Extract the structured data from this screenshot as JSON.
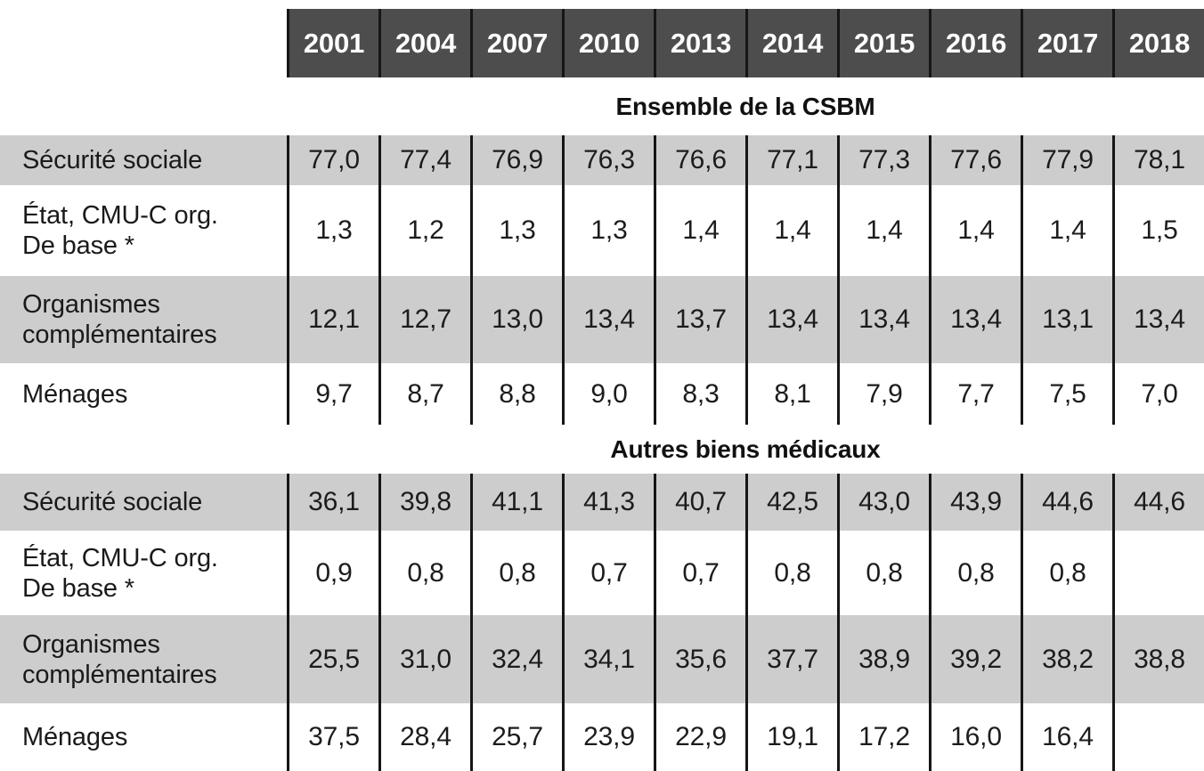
{
  "table": {
    "years": [
      "2001",
      "2004",
      "2007",
      "2010",
      "2013",
      "2014",
      "2015",
      "2016",
      "2017",
      "2018"
    ],
    "sections": [
      {
        "title": "Ensemble de la CSBM",
        "rows": [
          {
            "label_lines": [
              "Sécurité sociale"
            ],
            "values": [
              "77,0",
              "77,4",
              "76,9",
              "76,3",
              "76,6",
              "77,1",
              "77,3",
              "77,6",
              "77,9",
              "78,1"
            ]
          },
          {
            "label_lines": [
              "État, CMU-C org.",
              "De base *"
            ],
            "values": [
              "1,3",
              "1,2",
              "1,3",
              "1,3",
              "1,4",
              "1,4",
              "1,4",
              "1,4",
              "1,4",
              "1,5"
            ]
          },
          {
            "label_lines": [
              "Organismes",
              "complémentaires"
            ],
            "values": [
              "12,1",
              "12,7",
              "13,0",
              "13,4",
              "13,7",
              "13,4",
              "13,4",
              "13,4",
              "13,1",
              "13,4"
            ]
          },
          {
            "label_lines": [
              "Ménages"
            ],
            "values": [
              "9,7",
              "8,7",
              "8,8",
              "9,0",
              "8,3",
              "8,1",
              "7,9",
              "7,7",
              "7,5",
              "7,0"
            ]
          }
        ]
      },
      {
        "title": "Autres biens médicaux",
        "rows": [
          {
            "label_lines": [
              "Sécurité sociale"
            ],
            "values": [
              "36,1",
              "39,8",
              "41,1",
              "41,3",
              "40,7",
              "42,5",
              "43,0",
              "43,9",
              "44,6",
              "44,6"
            ]
          },
          {
            "label_lines": [
              "État, CMU-C org.",
              "De base *"
            ],
            "values": [
              "0,9",
              "0,8",
              "0,8",
              "0,7",
              "0,7",
              "0,8",
              "0,8",
              "0,8",
              "0,8",
              ""
            ]
          },
          {
            "label_lines": [
              "Organismes",
              "complémentaires"
            ],
            "values": [
              "25,5",
              "31,0",
              "32,4",
              "34,1",
              "35,6",
              "37,7",
              "38,9",
              "39,2",
              "38,2",
              "38,8"
            ]
          },
          {
            "label_lines": [
              "Ménages"
            ],
            "values": [
              "37,5",
              "28,4",
              "25,7",
              "23,9",
              "22,9",
              "19,1",
              "17,2",
              "16,0",
              "16,4",
              ""
            ]
          }
        ]
      }
    ]
  },
  "colors": {
    "header_bg": "#4d4d4d",
    "header_text": "#ffffff",
    "row_shade": "#cdcdcd",
    "border": "#161616",
    "text": "#1a1a1a"
  },
  "chart_data": {
    "type": "table",
    "categories": [
      "2001",
      "2004",
      "2007",
      "2010",
      "2013",
      "2014",
      "2015",
      "2016",
      "2017",
      "2018"
    ],
    "tables": [
      {
        "title": "Ensemble de la CSBM",
        "series": [
          {
            "name": "Sécurité sociale",
            "values": [
              77.0,
              77.4,
              76.9,
              76.3,
              76.6,
              77.1,
              77.3,
              77.6,
              77.9,
              78.1
            ]
          },
          {
            "name": "État, CMU-C org. De base *",
            "values": [
              1.3,
              1.2,
              1.3,
              1.3,
              1.4,
              1.4,
              1.4,
              1.4,
              1.4,
              1.5
            ]
          },
          {
            "name": "Organismes complémentaires",
            "values": [
              12.1,
              12.7,
              13.0,
              13.4,
              13.7,
              13.4,
              13.4,
              13.4,
              13.1,
              13.4
            ]
          },
          {
            "name": "Ménages",
            "values": [
              9.7,
              8.7,
              8.8,
              9.0,
              8.3,
              8.1,
              7.9,
              7.7,
              7.5,
              7.0
            ]
          }
        ]
      },
      {
        "title": "Autres biens médicaux",
        "series": [
          {
            "name": "Sécurité sociale",
            "values": [
              36.1,
              39.8,
              41.1,
              41.3,
              40.7,
              42.5,
              43.0,
              43.9,
              44.6,
              44.6
            ]
          },
          {
            "name": "État, CMU-C org. De base *",
            "values": [
              0.9,
              0.8,
              0.8,
              0.7,
              0.7,
              0.8,
              0.8,
              0.8,
              0.8,
              null
            ]
          },
          {
            "name": "Organismes complémentaires",
            "values": [
              25.5,
              31.0,
              32.4,
              34.1,
              35.6,
              37.7,
              38.9,
              39.2,
              38.2,
              38.8
            ]
          },
          {
            "name": "Ménages",
            "values": [
              37.5,
              28.4,
              25.7,
              23.9,
              22.9,
              19.1,
              17.2,
              16.0,
              16.4,
              null
            ]
          }
        ]
      }
    ]
  }
}
